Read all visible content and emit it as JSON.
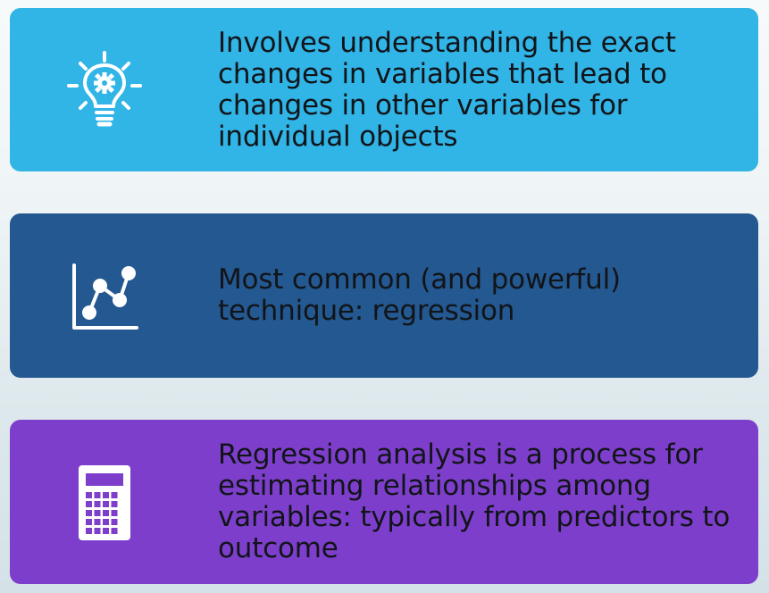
{
  "cards": [
    {
      "icon": "lightbulb-gear-icon",
      "text": "Involves understanding the exact changes in variables that lead to changes in other variables for individual objects",
      "color": "#31b4e6"
    },
    {
      "icon": "line-chart-icon",
      "text": "Most common (and powerful) technique: regression",
      "color": "#245890"
    },
    {
      "icon": "calculator-icon",
      "text": "Regression analysis is a process for estimating relationships among variables: typically from predictors to outcome",
      "color": "#7d3fcb"
    }
  ]
}
